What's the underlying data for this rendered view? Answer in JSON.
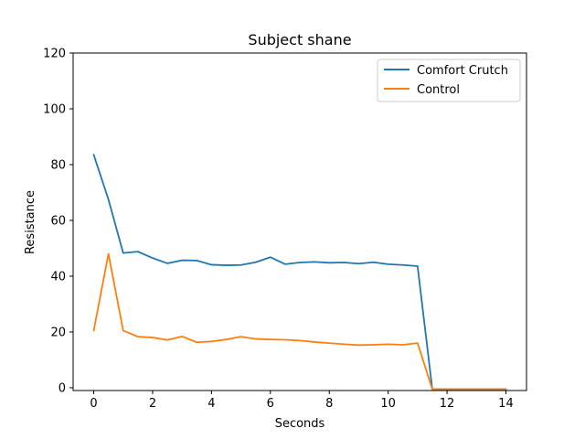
{
  "chart_data": {
    "type": "line",
    "title": "Subject shane",
    "xlabel": "Seconds",
    "ylabel": "Resistance",
    "xlim": [
      -0.7,
      14.7
    ],
    "ylim": [
      -1,
      120
    ],
    "xticks": [
      0,
      2,
      4,
      6,
      8,
      10,
      12,
      14
    ],
    "yticks": [
      0,
      20,
      40,
      60,
      80,
      100,
      120
    ],
    "grid": false,
    "legend_position": "top-right",
    "x": [
      0,
      0.5,
      1,
      1.5,
      2,
      2.5,
      3,
      3.5,
      4,
      4.5,
      5,
      5.5,
      6,
      6.5,
      7,
      7.5,
      8,
      8.5,
      9,
      9.5,
      10,
      10.5,
      11,
      11.5,
      12,
      12.5,
      13,
      13.5,
      14
    ],
    "series": [
      {
        "name": "Comfort Crutch",
        "color": "#1f77b4",
        "values": [
          83.5,
          67.5,
          48.3,
          48.8,
          46.5,
          44.6,
          45.7,
          45.6,
          44.1,
          43.9,
          44.0,
          45.0,
          46.8,
          44.3,
          44.9,
          45.1,
          44.8,
          44.9,
          44.5,
          45.0,
          44.3,
          44.0,
          43.6,
          -0.5,
          -0.5,
          -0.5,
          -0.5,
          -0.5,
          -0.5
        ]
      },
      {
        "name": "Control",
        "color": "#ff7f0e",
        "values": [
          20.5,
          48.0,
          20.5,
          18.3,
          18.0,
          17.1,
          18.4,
          16.3,
          16.6,
          17.3,
          18.3,
          17.5,
          17.3,
          17.2,
          16.9,
          16.4,
          16.0,
          15.6,
          15.3,
          15.4,
          15.6,
          15.4,
          16.0,
          -0.5,
          -0.5,
          -0.5,
          -0.5,
          -0.5,
          -0.5
        ]
      }
    ]
  }
}
